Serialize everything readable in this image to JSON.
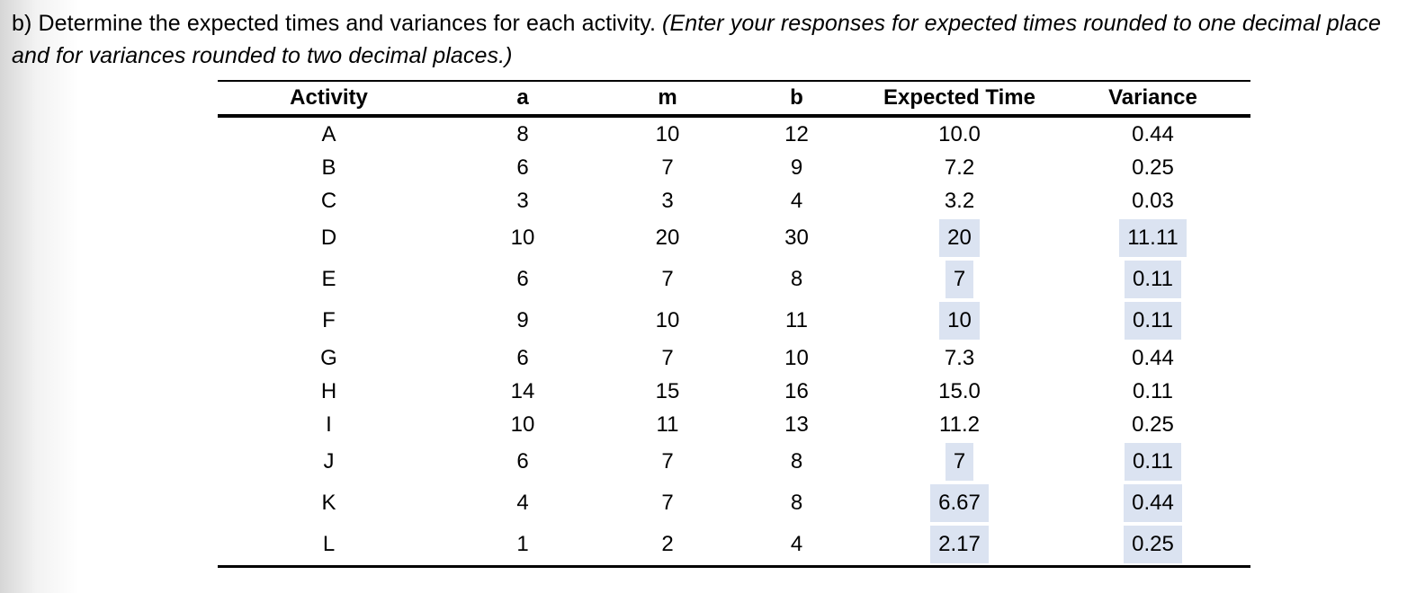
{
  "intro": {
    "prefix": "b) Determine the expected times and variances for each activity. ",
    "italic": "(Enter your responses for expected times rounded to one decimal place and for variances rounded to two decimal places.)"
  },
  "table": {
    "headers": [
      "Activity",
      "a",
      "m",
      "b",
      "Expected Time",
      "Variance"
    ],
    "rows": [
      {
        "activity": "A",
        "a": "8",
        "m": "10",
        "b": "12",
        "expected_time": "10.0",
        "variance": "0.44",
        "filled": false
      },
      {
        "activity": "B",
        "a": "6",
        "m": "7",
        "b": "9",
        "expected_time": "7.2",
        "variance": "0.25",
        "filled": false
      },
      {
        "activity": "C",
        "a": "3",
        "m": "3",
        "b": "4",
        "expected_time": "3.2",
        "variance": "0.03",
        "filled": false
      },
      {
        "activity": "D",
        "a": "10",
        "m": "20",
        "b": "30",
        "expected_time": "20",
        "variance": "11.11",
        "filled": true
      },
      {
        "activity": "E",
        "a": "6",
        "m": "7",
        "b": "8",
        "expected_time": "7",
        "variance": "0.11",
        "filled": true
      },
      {
        "activity": "F",
        "a": "9",
        "m": "10",
        "b": "11",
        "expected_time": "10",
        "variance": "0.11",
        "filled": true
      },
      {
        "activity": "G",
        "a": "6",
        "m": "7",
        "b": "10",
        "expected_time": "7.3",
        "variance": "0.44",
        "filled": false
      },
      {
        "activity": "H",
        "a": "14",
        "m": "15",
        "b": "16",
        "expected_time": "15.0",
        "variance": "0.11",
        "filled": false
      },
      {
        "activity": "I",
        "a": "10",
        "m": "11",
        "b": "13",
        "expected_time": "11.2",
        "variance": "0.25",
        "filled": false
      },
      {
        "activity": "J",
        "a": "6",
        "m": "7",
        "b": "8",
        "expected_time": "7",
        "variance": "0.11",
        "filled": true
      },
      {
        "activity": "K",
        "a": "4",
        "m": "7",
        "b": "8",
        "expected_time": "6.67",
        "variance": "0.44",
        "filled": true
      },
      {
        "activity": "L",
        "a": "1",
        "m": "2",
        "b": "4",
        "expected_time": "2.17",
        "variance": "0.25",
        "filled": true
      }
    ],
    "colors": {
      "input_highlight": "#dbe3f1"
    }
  }
}
